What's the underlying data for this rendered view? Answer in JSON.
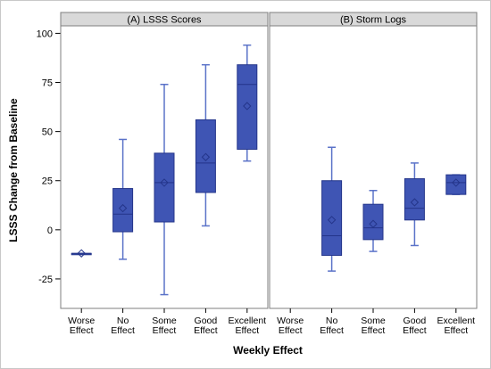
{
  "chart_data": {
    "type": "boxplot",
    "ylabel": "LSSS Change from Baseline",
    "xlabel": "Weekly Effect",
    "ylim": [
      -40,
      100
    ],
    "yticks": [
      -25,
      0,
      25,
      50,
      75,
      100
    ],
    "categories": [
      "Worse Effect",
      "No Effect",
      "Some Effect",
      "Good Effect",
      "Excellent Effect"
    ],
    "category_lines": [
      [
        "Worse",
        "Effect"
      ],
      [
        "No",
        "Effect"
      ],
      [
        "Some",
        "Effect"
      ],
      [
        "Good",
        "Effect"
      ],
      [
        "Excellent",
        "Effect"
      ]
    ],
    "grid": false,
    "colors": {
      "box_fill": "#3f55b4",
      "box_stroke": "#24358a",
      "whisker": "#5a72c8",
      "panel_header": "#d9d9d9",
      "divider": "#7f7f7f"
    },
    "panels": [
      {
        "title": "(A) LSSS Scores",
        "boxes": [
          {
            "category": "Worse Effect",
            "min": -12,
            "q1": -12,
            "median": -12,
            "q3": -12,
            "max": -12,
            "mean": -12
          },
          {
            "category": "No Effect",
            "min": -15,
            "q1": -1,
            "median": 8,
            "q3": 21,
            "max": 46,
            "mean": 11
          },
          {
            "category": "Some Effect",
            "min": -33,
            "q1": 4,
            "median": 24,
            "q3": 39,
            "max": 74,
            "mean": 24
          },
          {
            "category": "Good Effect",
            "min": 2,
            "q1": 19,
            "median": 34,
            "q3": 56,
            "max": 84,
            "mean": 37
          },
          {
            "category": "Excellent Effect",
            "min": 35,
            "q1": 41,
            "median": 74,
            "q3": 84,
            "max": 94,
            "mean": 63
          }
        ]
      },
      {
        "title": "(B) Storm Logs",
        "boxes": [
          {
            "category": "No Effect",
            "min": -21,
            "q1": -13,
            "median": -3,
            "q3": 25,
            "max": 42,
            "mean": 5
          },
          {
            "category": "Some Effect",
            "min": -11,
            "q1": -5,
            "median": 1,
            "q3": 13,
            "max": 20,
            "mean": 3
          },
          {
            "category": "Good Effect",
            "min": -8,
            "q1": 5,
            "median": 11,
            "q3": 26,
            "max": 34,
            "mean": 14
          },
          {
            "category": "Excellent Effect",
            "min": 18,
            "q1": 18,
            "median": 24,
            "q3": 28,
            "max": 28,
            "mean": 24
          }
        ]
      }
    ]
  }
}
